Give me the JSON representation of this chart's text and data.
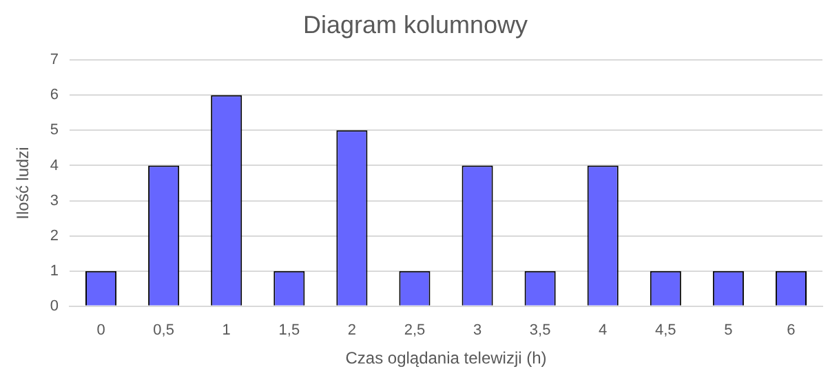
{
  "chart_data": {
    "type": "bar",
    "title": "Diagram kolumnowy",
    "xlabel": "Czas oglądania telewizji (h)",
    "ylabel": "Ilość ludzi",
    "categories": [
      "0",
      "0,5",
      "1",
      "1,5",
      "2",
      "2,5",
      "3",
      "3,5",
      "4",
      "4,5",
      "5",
      "6"
    ],
    "values": [
      1,
      4,
      6,
      1,
      5,
      1,
      4,
      1,
      4,
      1,
      1,
      1
    ],
    "color": "#6666ff",
    "ylim": [
      0,
      7
    ],
    "yticks": [
      0,
      1,
      2,
      3,
      4,
      5,
      6,
      7
    ],
    "grid": "y",
    "legend": false
  }
}
